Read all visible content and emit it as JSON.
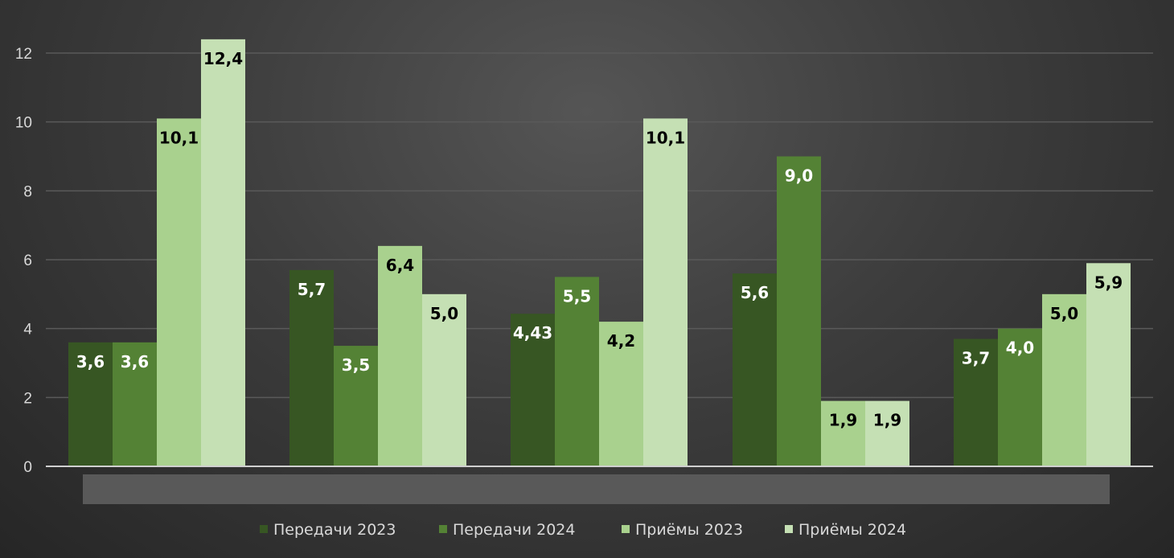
{
  "chart_data": {
    "type": "bar",
    "categories": [
      "",
      "",
      "",
      "",
      ""
    ],
    "series": [
      {
        "name": "Передачи 2023",
        "values": [
          3.6,
          5.7,
          4.43,
          5.6,
          3.7
        ],
        "labels": [
          "3,6",
          "5,7",
          "4,43",
          "5,6",
          "3,7"
        ]
      },
      {
        "name": "Передачи 2024",
        "values": [
          3.6,
          3.5,
          5.5,
          9.0,
          4.0
        ],
        "labels": [
          "3,6",
          "3,5",
          "5,5",
          "9,0",
          "4,0"
        ]
      },
      {
        "name": "Приёмы 2023",
        "values": [
          10.1,
          6.4,
          4.2,
          1.9,
          5.0
        ],
        "labels": [
          "10,1",
          "6,4",
          "4,2",
          "1,9",
          "5,0"
        ]
      },
      {
        "name": "Приёмы 2024",
        "values": [
          12.4,
          5.0,
          10.1,
          1.9,
          5.9
        ],
        "labels": [
          "12,4",
          "5,0",
          "10,1",
          "1,9",
          "5,9"
        ]
      }
    ],
    "colors": [
      "#375623",
      "#548235",
      "#a9d18e",
      "#c5e0b4"
    ],
    "label_colors": [
      "#ffffff",
      "#ffffff",
      "#000000",
      "#000000"
    ],
    "y_ticks": [
      "0",
      "2",
      "4",
      "6",
      "8",
      "10",
      "12"
    ],
    "ylim": [
      0,
      12
    ],
    "grid": true,
    "legend_position": "bottom",
    "title": "",
    "xlabel": "",
    "ylabel": ""
  },
  "style": {
    "gridline_color": "#5a5a5a",
    "axis_color": "#d0d0d0",
    "category_band_color": "#595959"
  }
}
